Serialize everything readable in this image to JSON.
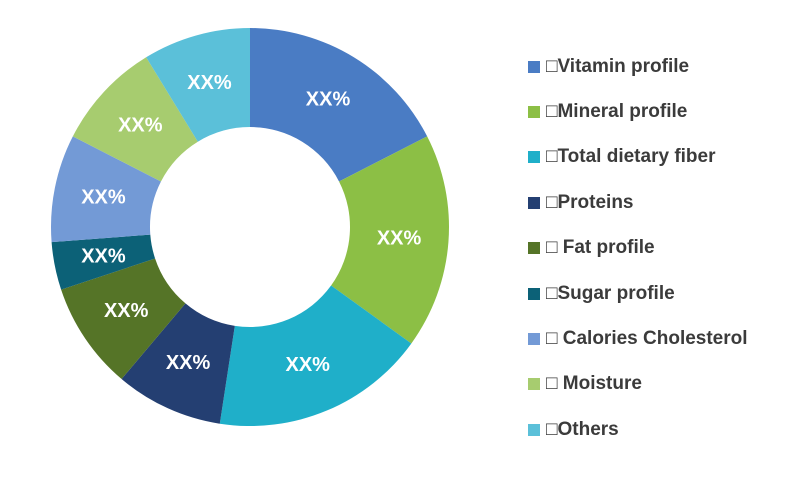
{
  "chart_data": {
    "type": "pie",
    "subtype": "donut",
    "title": "",
    "legend_position": "right",
    "slices": [
      {
        "label": "□Vitamin profile",
        "value": 18,
        "display": "XX%",
        "color": "#4a7cc4"
      },
      {
        "label": "□Mineral profile",
        "value": 18,
        "display": "XX%",
        "color": "#8cbf45"
      },
      {
        "label": "□Total dietary fiber",
        "value": 18,
        "display": "XX%",
        "color": "#1fafc9"
      },
      {
        "label": "□Proteins",
        "value": 9,
        "display": "XX%",
        "color": "#243f72"
      },
      {
        "label": "□ Fat profile",
        "value": 9,
        "display": "XX%",
        "color": "#557427"
      },
      {
        "label": "□Sugar profile",
        "value": 4,
        "display": "XX%",
        "color": "#0c6177"
      },
      {
        "label": "□ Calories Cholesterol",
        "value": 9,
        "display": "XX%",
        "color": "#739ad6"
      },
      {
        "label": "□ Moisture",
        "value": 9,
        "display": "XX%",
        "color": "#a7cc6f"
      },
      {
        "label": "□Others",
        "value": 9,
        "display": "XX%",
        "color": "#5bc0d9"
      }
    ]
  }
}
